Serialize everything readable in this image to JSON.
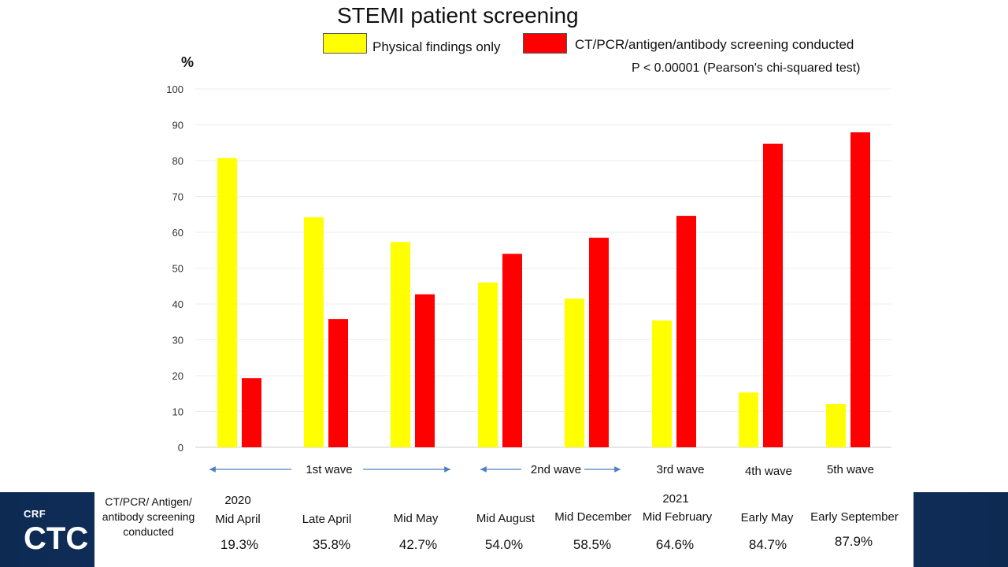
{
  "chart_data": {
    "type": "bar",
    "title": "STEMI patient screening",
    "ylabel": "%",
    "ylim": [
      0,
      100
    ],
    "yticks": [
      0,
      10,
      20,
      30,
      40,
      50,
      60,
      70,
      80,
      90,
      100
    ],
    "categories": [
      "Mid April",
      "Late April",
      "Mid May",
      "Mid August",
      "Mid December",
      "Mid February",
      "Early May",
      "Early September"
    ],
    "years": {
      "first": "2020",
      "second": "2021"
    },
    "series": [
      {
        "name": "Physical findings only",
        "color": "#ffff00",
        "values": [
          80.7,
          64.2,
          57.3,
          46.0,
          41.5,
          35.4,
          15.3,
          12.1
        ]
      },
      {
        "name": "CT/PCR/antigen/antibody screening conducted",
        "color": "#ff0000",
        "values": [
          19.3,
          35.8,
          42.7,
          54.0,
          58.5,
          64.6,
          84.7,
          87.9
        ]
      }
    ],
    "annotation": "P < 0.00001 (Pearson's chi-squared test)",
    "waves": [
      "1st wave",
      "2nd wave",
      "3rd wave",
      "4th wave",
      "5th wave"
    ],
    "table": {
      "row_label": "CT/PCR/ Antigen/ antibody screening conducted",
      "values": [
        "19.3%",
        "35.8%",
        "42.7%",
        "54.0%",
        "58.5%",
        "64.6%",
        "84.7%",
        "87.9%"
      ]
    },
    "grid": true,
    "legend_position": "top-right"
  },
  "logo": {
    "org": "CRF",
    "event": "CTC"
  },
  "colors": {
    "band": "#12396b",
    "arrow": "#4a7fc1"
  }
}
